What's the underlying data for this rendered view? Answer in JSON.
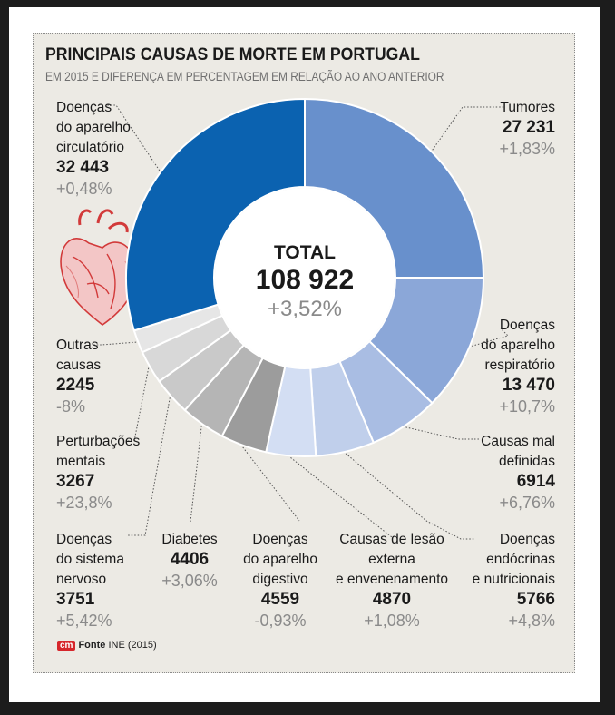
{
  "header": {
    "title": "PRINCIPAIS CAUSAS DE MORTE EM PORTUGAL",
    "subtitle": "EM 2015 E DIFERENÇA EM PERCENTAGEM EM RELAÇÃO AO ANO ANTERIOR"
  },
  "total": {
    "label": "TOTAL",
    "value": "108 922",
    "change": "+3,52%"
  },
  "source": {
    "logo": "cm",
    "label": "Fonte",
    "text": "INE (2015)"
  },
  "chart_data": {
    "type": "pie",
    "title": "PRINCIPAIS CAUSAS DE MORTE EM PORTUGAL",
    "subtitle": "EM 2015 E DIFERENÇA EM PERCENTAGEM EM RELAÇÃO AO ANO ANTERIOR",
    "donut": true,
    "total": 108922,
    "slices": [
      {
        "label": "Tumores",
        "value": 27231,
        "value_text": "27 231",
        "change": "+1,83%",
        "color": "#6890cc"
      },
      {
        "label": "Doenças do aparelho respiratório",
        "value": 13470,
        "value_text": "13 470",
        "change": "+10,7%",
        "color": "#8ba7d8"
      },
      {
        "label": "Causas mal definidas",
        "value": 6914,
        "value_text": "6914",
        "change": "+6,76%",
        "color": "#a9bde3"
      },
      {
        "label": "Doenças endócrinas e nutricionais",
        "value": 5766,
        "value_text": "5766",
        "change": "+4,8%",
        "color": "#c0cfeb"
      },
      {
        "label": "Causas de lesão externa e envenenamento",
        "value": 4870,
        "value_text": "4870",
        "change": "+1,08%",
        "color": "#d3def3"
      },
      {
        "label": "Doenças do aparelho digestivo",
        "value": 4559,
        "value_text": "4559",
        "change": "-0,93%",
        "color": "#9c9c9c"
      },
      {
        "label": "Diabetes",
        "value": 4406,
        "value_text": "4406",
        "change": "+3,06%",
        "color": "#b5b5b5"
      },
      {
        "label": "Doenças do sistema nervoso",
        "value": 3751,
        "value_text": "3751",
        "change": "+5,42%",
        "color": "#c9c9c9"
      },
      {
        "label": "Perturbações mentais",
        "value": 3267,
        "value_text": "3267",
        "change": "+23,8%",
        "color": "#d8d8d8"
      },
      {
        "label": "Outras causas",
        "value": 2245,
        "value_text": "2245",
        "change": "-8%",
        "color": "#e6e6e6"
      },
      {
        "label": "Doenças do aparelho circulatório",
        "value": 32443,
        "value_text": "32 443",
        "change": "+0,48%",
        "color": "#0b62b0"
      }
    ]
  },
  "labels": {
    "tumores": {
      "lines": [
        "Tumores"
      ],
      "value": "27 231",
      "change": "+1,83%"
    },
    "respiratorio": {
      "lines": [
        "Doenças",
        "do aparelho",
        "respiratório"
      ],
      "value": "13 470",
      "change": "+10,7%"
    },
    "mal_definidas": {
      "lines": [
        "Causas mal",
        "definidas"
      ],
      "value": "6914",
      "change": "+6,76%"
    },
    "endocrinas": {
      "lines": [
        "Doenças",
        "endócrinas",
        "e nutricionais"
      ],
      "value": "5766",
      "change": "+4,8%"
    },
    "lesao": {
      "lines": [
        "Causas de lesão",
        "externa",
        "e envenenamento"
      ],
      "value": "4870",
      "change": "+1,08%"
    },
    "digestivo": {
      "lines": [
        "Doenças",
        "do aparelho",
        "digestivo"
      ],
      "value": "4559",
      "change": "-0,93%"
    },
    "diabetes": {
      "lines": [
        "Diabetes"
      ],
      "value": "4406",
      "change": "+3,06%"
    },
    "nervoso": {
      "lines": [
        "Doenças",
        "do sistema",
        "nervoso"
      ],
      "value": "3751",
      "change": "+5,42%"
    },
    "mentais": {
      "lines": [
        "Perturbações",
        "mentais"
      ],
      "value": "3267",
      "change": "+23,8%"
    },
    "outras": {
      "lines": [
        "Outras",
        "causas"
      ],
      "value": "2245",
      "change": "-8%"
    },
    "circulatorio": {
      "lines": [
        "Doenças",
        "do aparelho",
        "circulatório"
      ],
      "value": "32 443",
      "change": "+0,48%"
    }
  }
}
